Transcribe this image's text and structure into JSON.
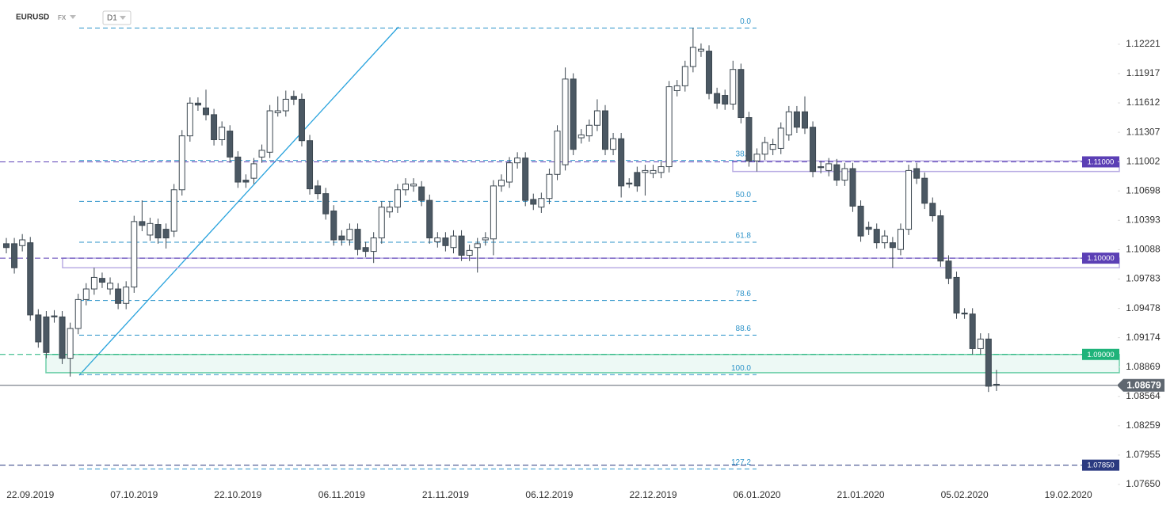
{
  "header": {
    "symbol": "EURUSD",
    "market": "FX",
    "interval": "D1"
  },
  "chart_data": {
    "type": "candlestick",
    "up_color": "#ffffff",
    "down_color": "#4b5863",
    "outline_color": "#3c4750",
    "categories": [
      null,
      null,
      null,
      "22.09.2019",
      null,
      null,
      null,
      null,
      null,
      null,
      null,
      null,
      null,
      null,
      null,
      null,
      "07.10.2019",
      null,
      null,
      null,
      null,
      null,
      null,
      null,
      null,
      null,
      null,
      null,
      null,
      "22.10.2019",
      null,
      null,
      null,
      null,
      null,
      null,
      null,
      null,
      null,
      null,
      null,
      null,
      "06.11.2019",
      null,
      null,
      null,
      null,
      null,
      null,
      null,
      null,
      null,
      null,
      null,
      null,
      "21.11.2019",
      null,
      null,
      null,
      null,
      null,
      null,
      null,
      null,
      null,
      null,
      null,
      null,
      "06.12.2019",
      null,
      null,
      null,
      null,
      null,
      null,
      null,
      null,
      null,
      null,
      null,
      null,
      "22.12.2019",
      null,
      null,
      null,
      null,
      null,
      null,
      null,
      null,
      null,
      null,
      null,
      null,
      "06.01.2020",
      null,
      null,
      null,
      null,
      null,
      null,
      null,
      null,
      null,
      null,
      null,
      null,
      "21.01.2020",
      null,
      null,
      null,
      null,
      null,
      null,
      null,
      null,
      null,
      null,
      null,
      null,
      "05.02.2020",
      null,
      null,
      null,
      null,
      null,
      null,
      null,
      null,
      null,
      null,
      null,
      null,
      "19.02.2020"
    ],
    "open": [
      1.1015,
      1.1015,
      1.1013,
      1.1016,
      1.0941,
      1.0939,
      1.094,
      1.0939,
      1.0896,
      1.0927,
      1.0957,
      1.0968,
      1.0979,
      1.0968,
      1.0968,
      1.0953,
      1.097,
      1.1038,
      1.1024,
      1.1035,
      1.103,
      1.1028,
      1.1071,
      1.1127,
      1.1161,
      1.1156,
      1.1149,
      1.1123,
      1.1132,
      1.1105,
      1.1081,
      1.1083,
      1.1105,
      1.111,
      1.1151,
      1.1153,
      1.1168,
      1.1165,
      1.1122,
      1.1075,
      1.1067,
      1.1049,
      1.1023,
      1.1019,
      1.103,
      1.1011,
      1.1007,
      1.1021,
      1.1048,
      1.1053,
      1.1071,
      1.1075,
      1.1074,
      1.106,
      1.1017,
      1.1021,
      1.1011,
      1.1023,
      1.1003,
      1.1011,
      1.1019,
      1.102,
      1.1075,
      1.1079,
      1.1099,
      1.1104,
      1.1061,
      1.1053,
      1.1062,
      1.1087,
      1.1097,
      1.1186,
      1.1125,
      1.1127,
      1.1138,
      1.1153,
      1.1113,
      1.1124,
      1.1078,
      1.1089,
      1.1089,
      1.1088,
      1.1089,
      1.1095,
      1.1174,
      1.1179,
      1.1199,
      1.1215,
      1.1215,
      1.1171,
      1.1169,
      1.116,
      1.1196,
      1.1146,
      1.1101,
      1.1108,
      1.1113,
      1.1114,
      1.1128,
      1.1152,
      1.1152,
      1.1136,
      1.1095,
      1.1091,
      1.1097,
      1.1081,
      1.1093,
      1.1054,
      1.1032,
      1.103,
      1.1016,
      1.1016,
      1.1009,
      1.103,
      1.1093,
      1.1083,
      1.1057,
      1.1044,
      1.0997,
      1.098,
      1.0943,
      1.0942,
      1.0906,
      1.0916,
      1.0869,
      null,
      null,
      null,
      null,
      null,
      null,
      null,
      null,
      null
    ],
    "high": [
      1.1021,
      1.1021,
      1.1025,
      1.1022,
      1.0947,
      1.0945,
      1.0946,
      1.0945,
      1.0933,
      1.0963,
      1.0974,
      1.099,
      1.0985,
      1.098,
      1.0974,
      1.0976,
      1.1044,
      1.106,
      1.1042,
      1.1041,
      1.1036,
      1.1077,
      1.1133,
      1.1167,
      1.1167,
      1.1175,
      1.1155,
      1.1142,
      1.1138,
      1.1111,
      1.1087,
      1.1104,
      1.1118,
      1.1159,
      1.1168,
      1.1174,
      1.1174,
      1.1171,
      1.1128,
      1.1081,
      1.1073,
      1.1055,
      1.1029,
      1.1036,
      1.1036,
      1.1017,
      1.1027,
      1.1059,
      1.1059,
      1.1077,
      1.1083,
      1.1083,
      1.108,
      1.1066,
      1.1027,
      1.1027,
      1.1029,
      1.1029,
      1.1014,
      1.1021,
      1.1027,
      1.1081,
      1.1087,
      1.1105,
      1.111,
      1.111,
      1.1067,
      1.1068,
      1.1093,
      1.1138,
      1.1198,
      1.1192,
      1.1134,
      1.1144,
      1.1165,
      1.1159,
      1.113,
      1.113,
      1.1083,
      1.1095,
      1.1097,
      1.1097,
      1.1101,
      1.1184,
      1.1185,
      1.1205,
      1.1239,
      1.1223,
      1.1221,
      1.1177,
      1.1175,
      1.1205,
      1.1202,
      1.1152,
      1.1114,
      1.1126,
      1.1124,
      1.1141,
      1.1158,
      1.1158,
      1.1168,
      1.1142,
      1.1101,
      1.1104,
      1.1103,
      1.1099,
      1.1099,
      1.106,
      1.1038,
      1.1036,
      1.1029,
      1.1022,
      1.1036,
      1.1097,
      1.1099,
      1.1089,
      1.1063,
      1.105,
      1.1003,
      1.0986,
      1.0948,
      1.0948,
      1.0922,
      1.0922,
      1.0884,
      null,
      null,
      null,
      null,
      null,
      null,
      null,
      null,
      null
    ],
    "low": [
      1.1005,
      1.0984,
      1.1007,
      1.0935,
      1.0907,
      1.0896,
      1.0933,
      1.089,
      1.0877,
      1.0921,
      1.0951,
      1.0962,
      1.0969,
      1.0962,
      1.0947,
      1.0947,
      1.0964,
      1.1028,
      1.1018,
      1.1015,
      1.101,
      1.1022,
      1.1065,
      1.1121,
      1.1153,
      1.1143,
      1.1117,
      1.1117,
      1.1099,
      1.1073,
      1.1073,
      1.1077,
      1.1099,
      1.1104,
      1.1147,
      1.1147,
      1.1159,
      1.1116,
      1.1066,
      1.1061,
      1.104,
      1.1013,
      1.1013,
      1.1013,
      1.1003,
      1.1001,
      1.0995,
      1.1015,
      1.1042,
      1.1047,
      1.1065,
      1.1069,
      1.1054,
      1.1015,
      1.1011,
      1.1007,
      1.1005,
      1.0997,
      1.0997,
      1.0985,
      1.1013,
      1.1003,
      1.1069,
      1.1073,
      1.1093,
      1.1054,
      1.105,
      1.1047,
      1.1056,
      1.1081,
      1.1091,
      1.1107,
      1.1119,
      1.1121,
      1.1132,
      1.1107,
      1.1107,
      1.1063,
      1.1073,
      1.1069,
      1.1065,
      1.1083,
      1.1083,
      1.1089,
      1.1168,
      1.1173,
      1.1193,
      1.1209,
      1.1165,
      1.1155,
      1.1154,
      1.1154,
      1.114,
      1.1095,
      1.109,
      1.1102,
      1.1107,
      1.1108,
      1.1122,
      1.113,
      1.1129,
      1.1084,
      1.1088,
      1.1085,
      1.1075,
      1.1075,
      1.1048,
      1.1017,
      1.1024,
      1.101,
      1.101,
      1.099,
      1.1003,
      1.1024,
      1.1077,
      1.1051,
      1.1038,
      1.0991,
      1.0973,
      1.0937,
      1.0937,
      1.09,
      1.09,
      1.0861,
      1.0862,
      null,
      null,
      null,
      null,
      null,
      null,
      null,
      null,
      null
    ],
    "close": [
      1.1011,
      1.099,
      1.1019,
      1.0941,
      1.0913,
      1.0902,
      1.0939,
      1.0896,
      1.0927,
      1.0957,
      1.0968,
      1.098,
      1.0975,
      1.0974,
      1.0953,
      1.097,
      1.1038,
      1.1034,
      1.1036,
      1.1021,
      1.1021,
      1.1071,
      1.1127,
      1.1161,
      1.1159,
      1.1149,
      1.1123,
      1.1136,
      1.1105,
      1.1079,
      1.1079,
      1.1098,
      1.1112,
      1.1153,
      1.1153,
      1.1165,
      1.1165,
      1.1122,
      1.1072,
      1.1067,
      1.1046,
      1.1019,
      1.1019,
      1.103,
      1.1009,
      1.1007,
      1.1021,
      1.1053,
      1.1053,
      1.1071,
      1.1077,
      1.1077,
      1.106,
      1.1021,
      1.1021,
      1.1013,
      1.1023,
      1.1003,
      1.1008,
      1.1015,
      1.1021,
      1.1075,
      1.1081,
      1.1099,
      1.1104,
      1.106,
      1.1056,
      1.1062,
      1.1087,
      1.1132,
      1.1186,
      1.1113,
      1.1128,
      1.1138,
      1.1153,
      1.1113,
      1.1124,
      1.1075,
      1.1077,
      1.1075,
      1.1091,
      1.1091,
      1.1095,
      1.1178,
      1.1179,
      1.1199,
      1.1219,
      1.1217,
      1.1171,
      1.1161,
      1.116,
      1.1196,
      1.1146,
      1.1101,
      1.1108,
      1.112,
      1.1118,
      1.1135,
      1.1152,
      1.1136,
      1.1135,
      1.109,
      1.1094,
      1.1098,
      1.1081,
      1.1093,
      1.1054,
      1.1023,
      1.103,
      1.1016,
      1.1023,
      1.1011,
      1.103,
      1.1091,
      1.1083,
      1.1057,
      1.1044,
      1.0997,
      1.0979,
      1.0943,
      1.0942,
      1.0906,
      1.0916,
      1.0867,
      1.0868,
      null,
      null,
      null,
      null,
      null,
      null,
      null,
      null,
      null
    ],
    "ylim": [
      1.07625,
      1.12681
    ],
    "yticks": [
      1.12221,
      1.11917,
      1.11612,
      1.11307,
      1.11002,
      1.10698,
      1.10393,
      1.10088,
      1.09783,
      1.09478,
      1.09174,
      1.08869,
      1.08564,
      1.08259,
      1.07955,
      {
        "value": 1.0765,
        "label": "1.07650"
      }
    ],
    "fibonacci": {
      "high": 1.1239,
      "low": 1.0879,
      "color": "#2d93c9",
      "levels": [
        {
          "value": 0,
          "label": "0.0"
        },
        38.2,
        {
          "value": 50,
          "label": "50.0"
        },
        61.8,
        78.6,
        88.6,
        {
          "value": 100,
          "label": "100.0"
        },
        127.2
      ]
    },
    "levels": [
      {
        "value": 1.11,
        "label": "1.11000",
        "color": "#5b3fb5"
      },
      {
        "value": 1.1,
        "label": "1.10000",
        "color": "#5b3fb5"
      },
      {
        "value": 1.09,
        "label": "1.09000",
        "color": "#1fb37a"
      },
      {
        "value": 1.0785,
        "label": "1.07850",
        "color": "#2b3a80"
      }
    ],
    "zones": [
      {
        "top": 1.1101,
        "bottom": 1.109,
        "color": "#b9ace3"
      },
      {
        "top": 1.1,
        "bottom": 1.099,
        "color": "#b9ace3"
      },
      {
        "top": 1.09,
        "bottom": 1.0881,
        "color": "#6fcfaa"
      }
    ],
    "last_price": {
      "value": 1.08679,
      "color": "#5f6770"
    }
  }
}
